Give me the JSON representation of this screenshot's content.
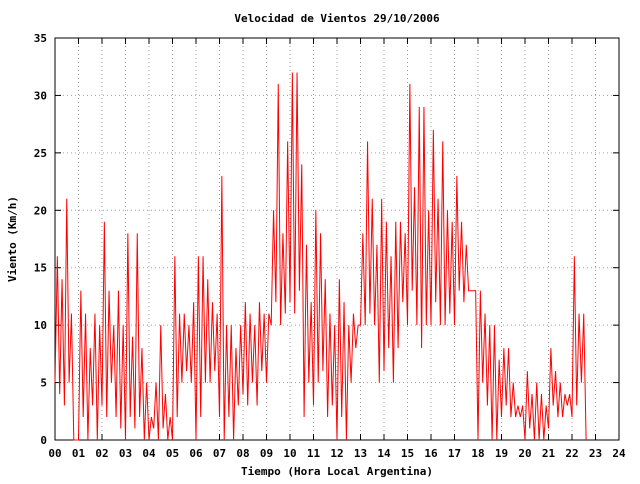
{
  "chart_data": {
    "type": "line",
    "title": "Velocidad de Vientos 29/10/2006",
    "xlabel": "Tiempo (Hora Local Argentina)",
    "ylabel": "Viento (Km/h)",
    "xlim": [
      0,
      24
    ],
    "ylim": [
      0,
      35
    ],
    "xticks": [
      {
        "value": 0,
        "label": "00"
      },
      {
        "value": 1,
        "label": "01"
      },
      {
        "value": 2,
        "label": "02"
      },
      {
        "value": 3,
        "label": "03"
      },
      {
        "value": 4,
        "label": "04"
      },
      {
        "value": 5,
        "label": "05"
      },
      {
        "value": 6,
        "label": "06"
      },
      {
        "value": 7,
        "label": "07"
      },
      {
        "value": 8,
        "label": "08"
      },
      {
        "value": 9,
        "label": "09"
      },
      {
        "value": 10,
        "label": "10"
      },
      {
        "value": 11,
        "label": "11"
      },
      {
        "value": 12,
        "label": "12"
      },
      {
        "value": 13,
        "label": "13"
      },
      {
        "value": 14,
        "label": "14"
      },
      {
        "value": 15,
        "label": "15"
      },
      {
        "value": 16,
        "label": "16"
      },
      {
        "value": 17,
        "label": "17"
      },
      {
        "value": 18,
        "label": "18"
      },
      {
        "value": 19,
        "label": "19"
      },
      {
        "value": 20,
        "label": "20"
      },
      {
        "value": 21,
        "label": "21"
      },
      {
        "value": 22,
        "label": "22"
      },
      {
        "value": 23,
        "label": "23"
      },
      {
        "value": 24,
        "label": "24"
      }
    ],
    "yticks": [
      0,
      5,
      10,
      15,
      20,
      25,
      30,
      35
    ],
    "grid": true,
    "x": [
      0,
      0.1,
      0.2,
      0.3,
      0.4,
      0.5,
      0.6,
      0.7,
      0.8,
      0.9,
      1,
      1.1,
      1.2,
      1.3,
      1.4,
      1.5,
      1.6,
      1.7,
      1.8,
      1.9,
      2,
      2.1,
      2.2,
      2.3,
      2.4,
      2.5,
      2.6,
      2.7,
      2.8,
      2.9,
      3,
      3.1,
      3.2,
      3.3,
      3.4,
      3.5,
      3.6,
      3.7,
      3.8,
      3.9,
      4,
      4.1,
      4.2,
      4.3,
      4.4,
      4.5,
      4.6,
      4.7,
      4.8,
      4.9,
      5,
      5.1,
      5.2,
      5.3,
      5.4,
      5.5,
      5.6,
      5.7,
      5.8,
      5.9,
      6,
      6.1,
      6.2,
      6.3,
      6.4,
      6.5,
      6.6,
      6.7,
      6.8,
      6.9,
      7,
      7.1,
      7.2,
      7.3,
      7.4,
      7.5,
      7.6,
      7.7,
      7.8,
      7.9,
      8,
      8.1,
      8.2,
      8.3,
      8.4,
      8.5,
      8.6,
      8.7,
      8.8,
      8.9,
      9,
      9.1,
      9.2,
      9.3,
      9.4,
      9.5,
      9.6,
      9.7,
      9.8,
      9.9,
      10,
      10.1,
      10.2,
      10.3,
      10.4,
      10.5,
      10.6,
      10.7,
      10.8,
      10.9,
      11,
      11.1,
      11.2,
      11.3,
      11.4,
      11.5,
      11.6,
      11.7,
      11.8,
      11.9,
      12,
      12.1,
      12.2,
      12.3,
      12.4,
      12.5,
      12.6,
      12.7,
      12.8,
      12.9,
      13,
      13.1,
      13.2,
      13.3,
      13.4,
      13.5,
      13.6,
      13.7,
      13.8,
      13.9,
      14,
      14.1,
      14.2,
      14.3,
      14.4,
      14.5,
      14.6,
      14.7,
      14.8,
      14.9,
      15,
      15.1,
      15.2,
      15.3,
      15.4,
      15.5,
      15.6,
      15.7,
      15.8,
      15.9,
      16,
      16.1,
      16.2,
      16.3,
      16.4,
      16.5,
      16.6,
      16.7,
      16.8,
      16.9,
      17,
      17.1,
      17.2,
      17.3,
      17.4,
      17.5,
      17.6,
      17.7,
      17.8,
      17.9,
      18,
      18.1,
      18.2,
      18.3,
      18.4,
      18.5,
      18.6,
      18.7,
      18.8,
      18.9,
      19,
      19.1,
      19.2,
      19.3,
      19.4,
      19.5,
      19.6,
      19.7,
      19.8,
      19.9,
      20,
      20.1,
      20.2,
      20.3,
      20.4,
      20.5,
      20.6,
      20.7,
      20.8,
      20.9,
      21,
      21.1,
      21.2,
      21.3,
      21.4,
      21.5,
      21.6,
      21.7,
      21.8,
      21.9,
      22,
      22.1,
      22.2,
      22.3,
      22.4,
      22.5,
      22.6
    ],
    "series": [
      {
        "color": "#ff0000",
        "values": [
          5,
          16,
          4,
          14,
          3,
          21,
          5,
          11,
          0,
          0,
          0,
          13,
          2,
          11,
          0,
          8,
          3,
          11,
          0,
          10,
          3,
          19,
          2,
          13,
          5,
          10,
          2,
          13,
          1,
          10,
          0,
          18,
          2,
          9,
          1,
          18,
          2,
          8,
          0,
          5,
          0,
          2,
          1,
          5,
          0,
          10,
          1,
          4,
          0,
          2,
          0,
          16,
          2,
          11,
          5,
          11,
          6,
          10,
          5,
          12,
          0,
          16,
          2,
          16,
          5,
          14,
          5,
          12,
          6,
          11,
          2,
          23,
          0,
          10,
          2,
          10,
          0,
          8,
          3,
          10,
          4,
          12,
          3,
          11,
          5,
          10,
          3,
          12,
          6,
          11,
          5,
          11,
          10,
          20,
          12,
          31,
          10,
          18,
          11,
          26,
          12,
          32,
          11,
          32,
          13,
          24,
          2,
          17,
          5,
          12,
          3,
          20,
          5,
          18,
          6,
          14,
          2,
          11,
          3,
          10,
          0,
          14,
          2,
          12,
          0,
          10,
          5,
          11,
          8,
          10,
          10,
          18,
          10,
          26,
          11,
          21,
          10,
          17,
          5,
          21,
          6,
          19,
          8,
          16,
          5,
          19,
          8,
          19,
          12,
          18,
          10,
          31,
          13,
          22,
          10,
          29,
          8,
          29,
          10,
          20,
          10,
          27,
          12,
          21,
          10,
          26,
          10,
          20,
          11,
          19,
          10,
          23,
          13,
          19,
          12,
          17,
          13,
          13,
          13,
          13,
          0,
          13,
          5,
          11,
          3,
          10,
          0,
          10,
          0,
          7,
          2,
          8,
          3,
          8,
          2,
          5,
          2,
          3,
          2,
          3,
          0,
          6,
          1,
          4,
          0,
          5,
          0,
          4,
          0,
          3,
          1,
          8,
          3,
          6,
          2,
          5,
          2,
          4,
          3,
          4,
          2,
          16,
          3,
          11,
          5,
          11,
          0
        ]
      }
    ]
  }
}
